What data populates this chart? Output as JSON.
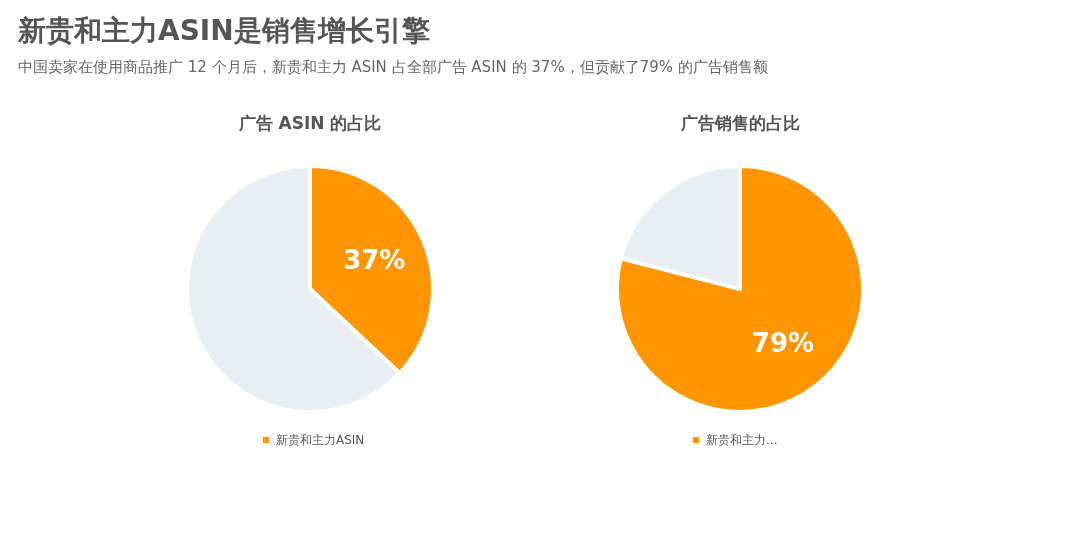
{
  "chart_data": [
    {
      "type": "pie",
      "title": "新贵和主力ASIN是销售增长引擎",
      "subtitle": "中国卖家在使用商品推广 12 个月后，新贵和主力 ASIN 占全部广告 ASIN 的 37%，但贡献了79% 的广告销售额",
      "xlabel": "广告 ASIN 的占比",
      "categories": [
        "新贵和主力ASIN",
        null
      ],
      "values": [
        37,
        63
      ],
      "colors": [
        "#ff9500",
        "#e9edf4"
      ],
      "value_labels": [
        "37%",
        null
      ],
      "legend": "bottom"
    },
    {
      "type": "pie",
      "xlabel": "广告销售的占比",
      "categories": [
        "新贵和主力...",
        null
      ],
      "values": [
        79,
        21
      ],
      "colors": [
        "#ff9500",
        "#e9edf4"
      ],
      "value_labels": [
        "79%",
        null
      ],
      "legend": "bottom"
    }
  ]
}
